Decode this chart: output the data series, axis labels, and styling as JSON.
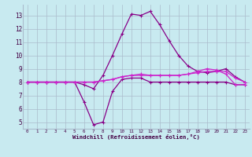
{
  "background_color": "#c8eaf0",
  "grid_color": "#aabbcc",
  "line_color1": "#880088",
  "line_color2": "#cc22cc",
  "xlabel": "Windchill (Refroidissement éolien,°C)",
  "ylabel_ticks": [
    5,
    6,
    7,
    8,
    9,
    10,
    11,
    12,
    13
  ],
  "xlim": [
    -0.5,
    23.5
  ],
  "ylim": [
    4.5,
    13.8
  ],
  "x_hours": [
    0,
    1,
    2,
    3,
    4,
    5,
    6,
    7,
    8,
    9,
    10,
    11,
    12,
    13,
    14,
    15,
    16,
    17,
    18,
    19,
    20,
    21,
    22,
    23
  ],
  "line1_y": [
    8.0,
    8.0,
    8.0,
    8.0,
    8.0,
    8.0,
    7.8,
    7.5,
    8.5,
    10.0,
    11.6,
    13.1,
    13.0,
    13.3,
    12.3,
    11.1,
    10.0,
    9.2,
    8.8,
    8.7,
    8.8,
    9.0,
    8.4,
    8.0
  ],
  "line2_y": [
    8.0,
    8.0,
    8.0,
    8.0,
    8.0,
    8.0,
    6.5,
    4.8,
    5.0,
    7.3,
    8.2,
    8.3,
    8.3,
    8.0,
    8.0,
    8.0,
    8.0,
    8.0,
    8.0,
    8.0,
    8.0,
    8.0,
    7.8,
    7.8
  ],
  "line3_y": [
    8.0,
    8.0,
    8.0,
    8.0,
    8.0,
    8.0,
    8.0,
    8.0,
    8.1,
    8.2,
    8.4,
    8.5,
    8.5,
    8.5,
    8.5,
    8.5,
    8.5,
    8.6,
    8.7,
    8.8,
    8.8,
    8.8,
    8.3,
    8.0
  ],
  "line4_y": [
    8.0,
    8.0,
    8.0,
    8.0,
    8.0,
    8.0,
    8.0,
    8.0,
    8.1,
    8.2,
    8.4,
    8.5,
    8.6,
    8.5,
    8.5,
    8.5,
    8.5,
    8.6,
    8.8,
    9.0,
    8.9,
    8.6,
    7.8,
    7.8
  ]
}
